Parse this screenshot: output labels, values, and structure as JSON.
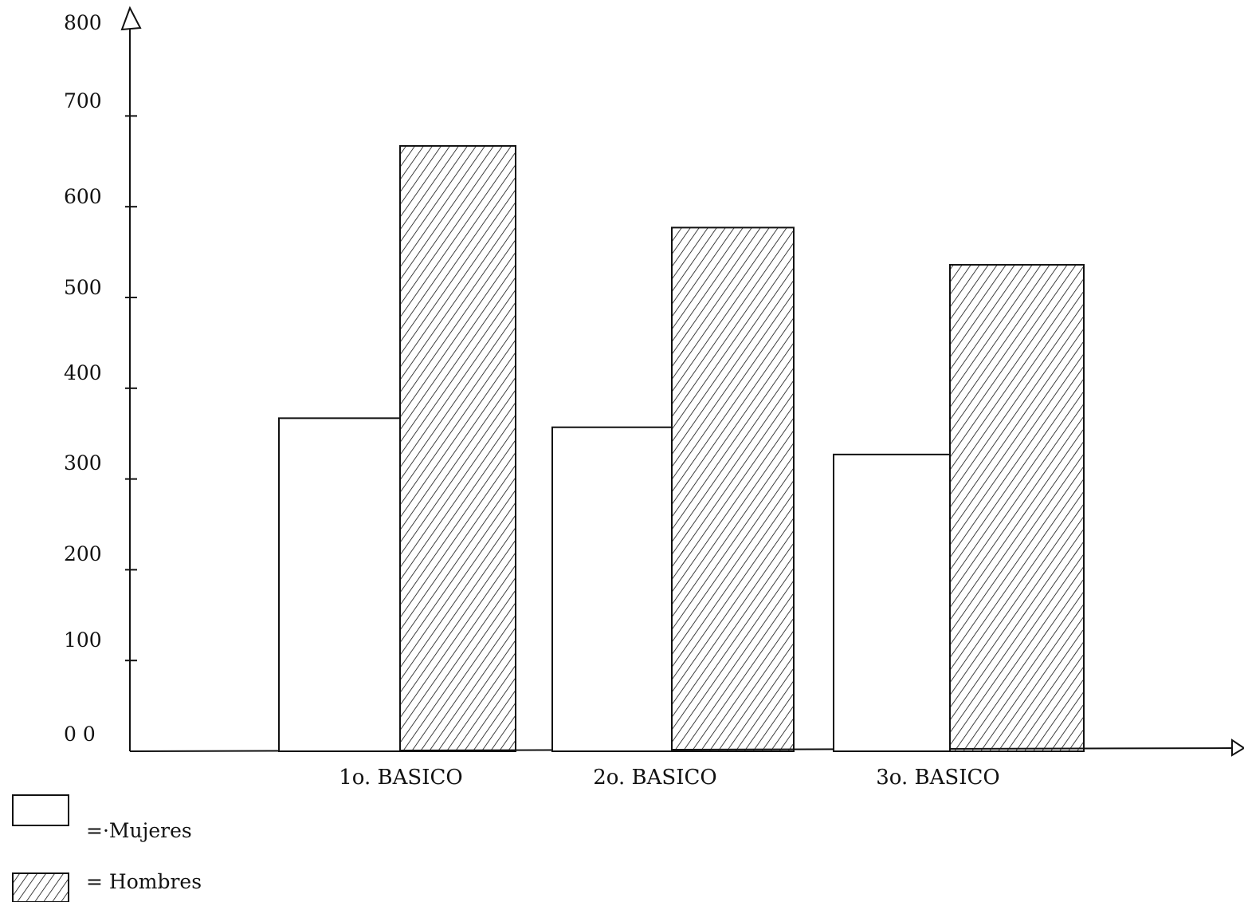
{
  "chart_data": {
    "type": "bar",
    "categories": [
      "1o. BASICO",
      "2o. BASICO",
      "3o. BASICO"
    ],
    "series": [
      {
        "name": "Mujeres",
        "values": [
          367,
          357,
          327
        ]
      },
      {
        "name": "Hombres",
        "values": [
          667,
          577,
          536
        ]
      }
    ],
    "y_tick_labels": [
      "0 0",
      "100",
      "200",
      "300",
      "400",
      "500",
      "600",
      "700",
      "800"
    ],
    "ylim": [
      0,
      800
    ],
    "xlabel": "",
    "ylabel": "",
    "grid": false,
    "legend": {
      "placement": "bottom-left",
      "entries": [
        {
          "label": "=·Mujeres",
          "pattern": "open"
        },
        {
          "label": "= Hombres",
          "pattern": "hatched"
        }
      ]
    },
    "colors": {
      "stroke": "#111111",
      "fill_open": "#ffffff",
      "hatch": "#111111"
    }
  }
}
